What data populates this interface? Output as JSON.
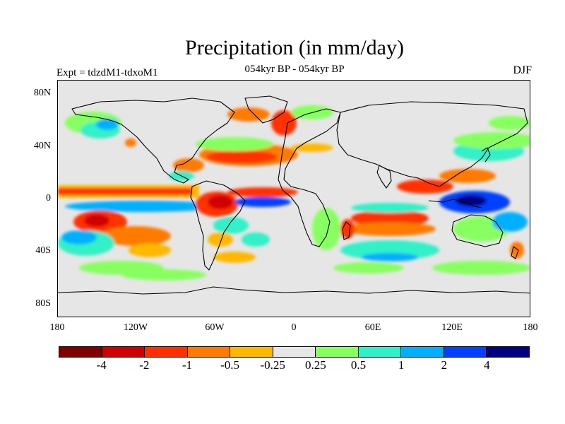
{
  "title": "Precipitation (in mm/day)",
  "subtitle": "054kyr BP - 054kyr BP",
  "left_label": "Expt = tdzdM1-tdxoM1",
  "right_label": "DJF",
  "lat_labels": [
    "80N",
    "40N",
    "0",
    "40S",
    "80S"
  ],
  "lon_labels": [
    "180",
    "120W",
    "60W",
    "0",
    "60E",
    "120E",
    "180"
  ],
  "colorbar": {
    "colors": [
      "#800000",
      "#d00000",
      "#ff3000",
      "#ff7a00",
      "#ffb800",
      "#e6e6e6",
      "#88ff60",
      "#30f0c8",
      "#00b0ff",
      "#0040ff",
      "#000080"
    ],
    "labels": [
      "-4",
      "-2",
      "-1",
      "-0.5",
      "-0.25",
      "0.25",
      "0.5",
      "1",
      "2",
      "4"
    ]
  },
  "colors": {
    "background": "#e6e6e6",
    "coastline": "#000000"
  }
}
